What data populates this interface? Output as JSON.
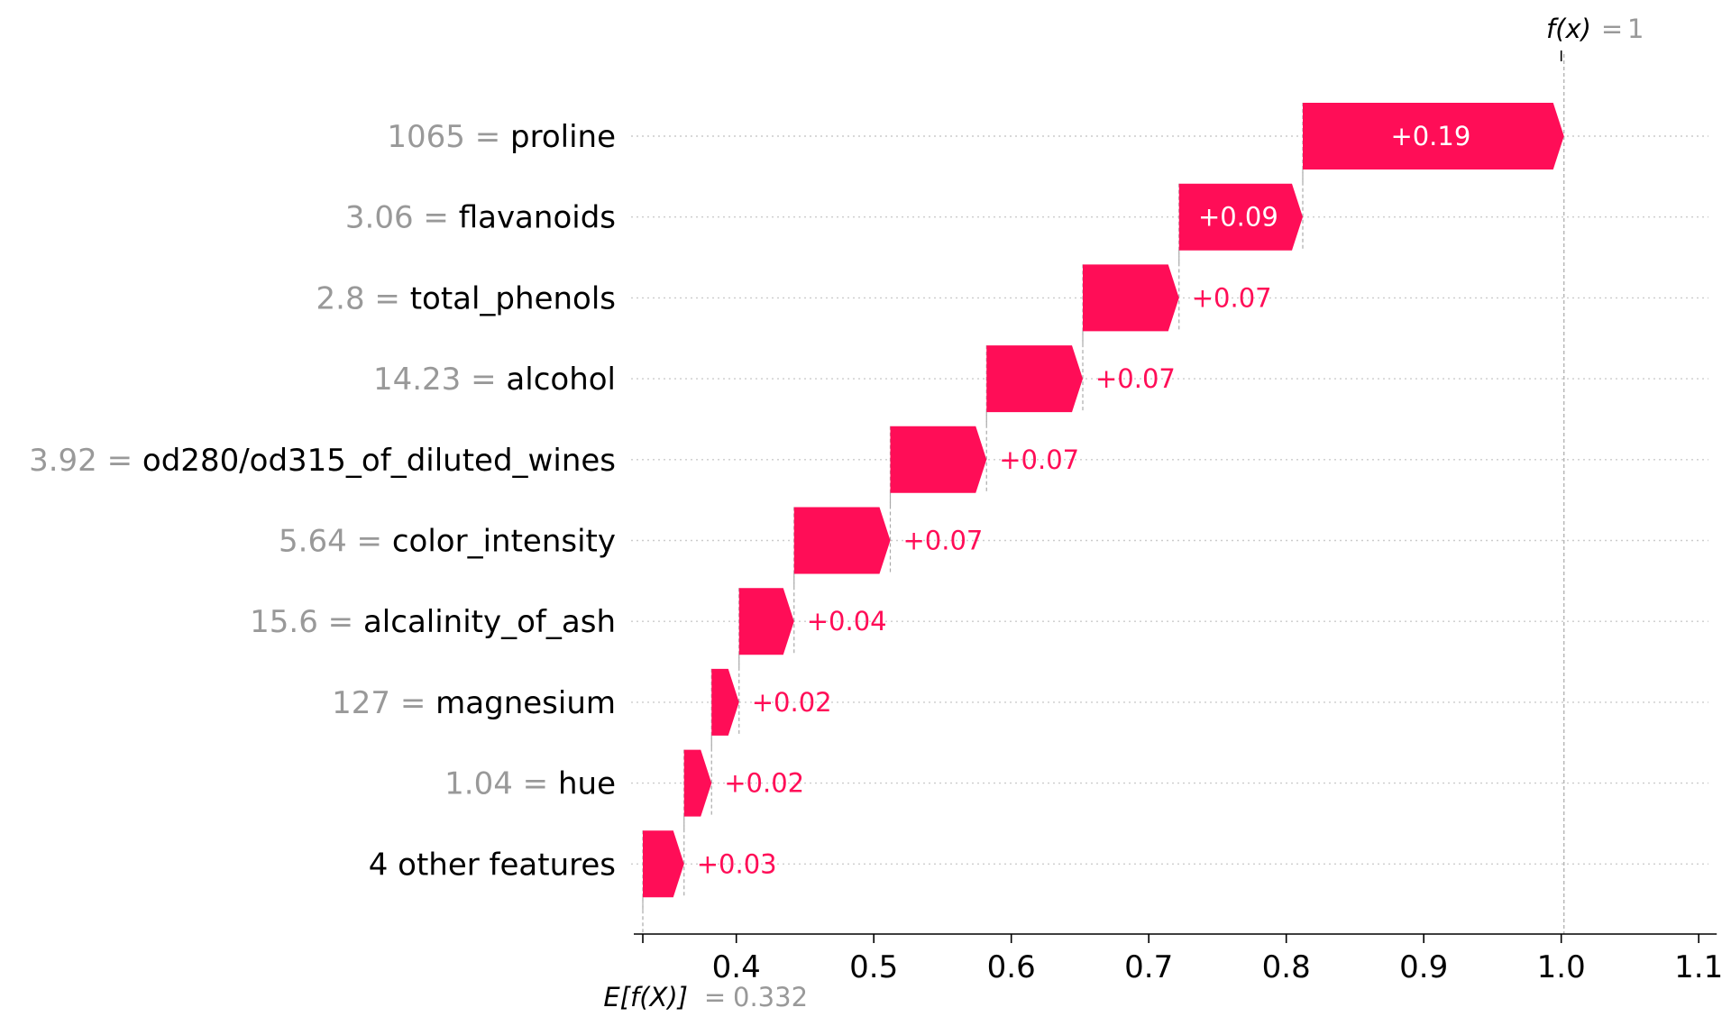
{
  "chart_data": {
    "type": "waterfall",
    "base_value": 0.332,
    "final_value": 1,
    "fx_label_name": "f(x)",
    "fx_label_value": "1",
    "ex_label_name": "E[f(X)]",
    "ex_label_value": "0.332",
    "xlim": [
      0.332,
      1.1
    ],
    "xticks": [
      0.4,
      0.5,
      0.6,
      0.7,
      0.8,
      0.9,
      1.0,
      1.1
    ],
    "xtick_labels": [
      "0.4",
      "0.5",
      "0.6",
      "0.7",
      "0.8",
      "0.9",
      "1.0",
      "1.1"
    ],
    "positive_color": "#ff0d57",
    "grid_color": "#cccccc",
    "features": [
      {
        "value": "1065",
        "name": "proline",
        "contribution": 0.19,
        "label": "+0.19"
      },
      {
        "value": "3.06",
        "name": "flavanoids",
        "contribution": 0.09,
        "label": "+0.09"
      },
      {
        "value": "2.8",
        "name": "total_phenols",
        "contribution": 0.07,
        "label": "+0.07"
      },
      {
        "value": "14.23",
        "name": "alcohol",
        "contribution": 0.07,
        "label": "+0.07"
      },
      {
        "value": "3.92",
        "name": "od280/od315_of_diluted_wines",
        "contribution": 0.07,
        "label": "+0.07"
      },
      {
        "value": "5.64",
        "name": "color_intensity",
        "contribution": 0.07,
        "label": "+0.07"
      },
      {
        "value": "15.6",
        "name": "alcalinity_of_ash",
        "contribution": 0.04,
        "label": "+0.04"
      },
      {
        "value": "127",
        "name": "magnesium",
        "contribution": 0.02,
        "label": "+0.02"
      },
      {
        "value": "1.04",
        "name": "hue",
        "contribution": 0.02,
        "label": "+0.02"
      },
      {
        "value": "",
        "name": "4 other features",
        "contribution": 0.03,
        "label": "+0.03"
      }
    ]
  }
}
